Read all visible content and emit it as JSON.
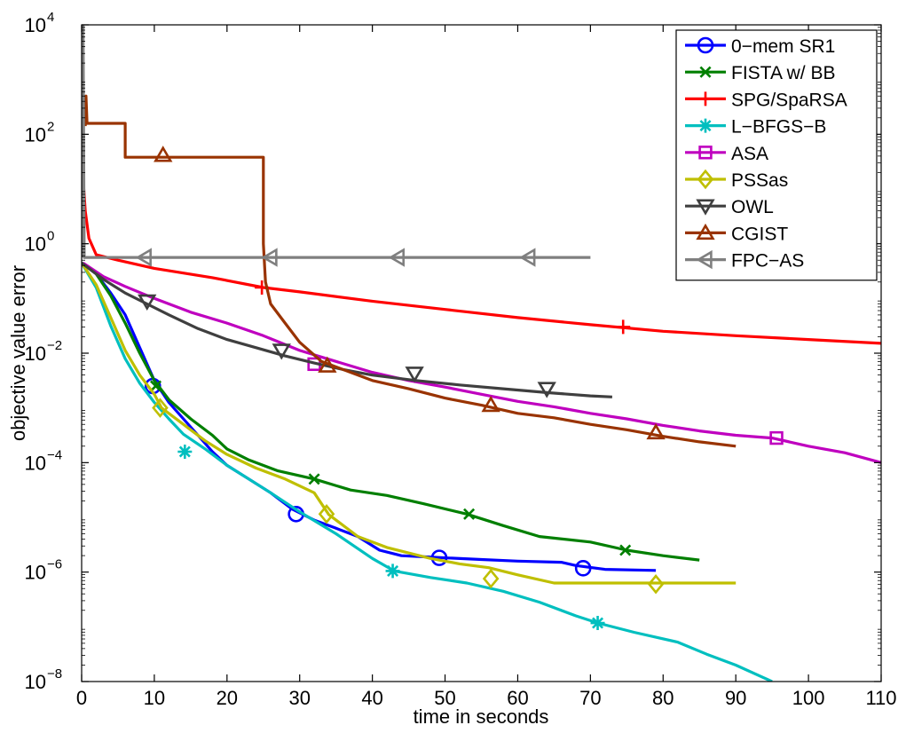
{
  "chart_data": {
    "type": "line",
    "title": "",
    "xlabel": "time in seconds",
    "ylabel": "objective value error",
    "xlim": [
      0,
      110
    ],
    "ylim_log10": [
      -8,
      4
    ],
    "yscale": "log",
    "grid": false,
    "legend_position": "top-right",
    "x_ticks": [
      "0",
      "10",
      "20",
      "30",
      "40",
      "50",
      "60",
      "70",
      "80",
      "90",
      "100",
      "110"
    ],
    "y_ticks": [
      {
        "base": "10",
        "exp": "−8",
        "value": -8
      },
      {
        "base": "10",
        "exp": "−6",
        "value": -6
      },
      {
        "base": "10",
        "exp": "−4",
        "value": -4
      },
      {
        "base": "10",
        "exp": "−2",
        "value": -2
      },
      {
        "base": "10",
        "exp": "0",
        "value": 0
      },
      {
        "base": "10",
        "exp": "2",
        "value": 2
      },
      {
        "base": "10",
        "exp": "4",
        "value": 4
      }
    ],
    "series": [
      {
        "name": "0−mem SR1",
        "color": "#0000ff",
        "marker": "circle",
        "points": [
          [
            0,
            -0.35
          ],
          [
            2,
            -0.55
          ],
          [
            4,
            -0.9
          ],
          [
            6,
            -1.3
          ],
          [
            8,
            -1.9
          ],
          [
            10,
            -2.5
          ],
          [
            12,
            -2.9
          ],
          [
            14,
            -3.2
          ],
          [
            16,
            -3.5
          ],
          [
            18,
            -3.8
          ],
          [
            20,
            -4.05
          ],
          [
            23,
            -4.3
          ],
          [
            26,
            -4.55
          ],
          [
            29,
            -4.85
          ],
          [
            32,
            -5.05
          ],
          [
            35,
            -5.2
          ],
          [
            38,
            -5.35
          ],
          [
            41,
            -5.6
          ],
          [
            44,
            -5.7
          ],
          [
            47,
            -5.72
          ],
          [
            50,
            -5.74
          ],
          [
            55,
            -5.77
          ],
          [
            60,
            -5.8
          ],
          [
            66,
            -5.82
          ],
          [
            68,
            -5.88
          ],
          [
            72,
            -5.95
          ],
          [
            79,
            -5.97
          ]
        ],
        "markers": [
          [
            9.8,
            -2.6
          ],
          [
            29.5,
            -4.94
          ],
          [
            49.2,
            -5.74
          ],
          [
            69,
            -5.93
          ]
        ]
      },
      {
        "name": "FISTA w/ BB",
        "color": "#007f00",
        "marker": "x",
        "points": [
          [
            0,
            -0.35
          ],
          [
            2,
            -0.55
          ],
          [
            4,
            -0.95
          ],
          [
            6,
            -1.45
          ],
          [
            8,
            -2.0
          ],
          [
            10,
            -2.5
          ],
          [
            12,
            -2.85
          ],
          [
            15,
            -3.2
          ],
          [
            18,
            -3.5
          ],
          [
            20,
            -3.75
          ],
          [
            23,
            -3.95
          ],
          [
            27,
            -4.15
          ],
          [
            32,
            -4.3
          ],
          [
            37,
            -4.5
          ],
          [
            42,
            -4.6
          ],
          [
            47,
            -4.75
          ],
          [
            53,
            -4.94
          ],
          [
            58,
            -5.15
          ],
          [
            63,
            -5.35
          ],
          [
            70,
            -5.45
          ],
          [
            75,
            -5.6
          ],
          [
            80,
            -5.7
          ],
          [
            85,
            -5.78
          ]
        ],
        "markers": [
          [
            10.2,
            -2.6
          ],
          [
            32,
            -4.3
          ],
          [
            53.3,
            -4.94
          ],
          [
            74.8,
            -5.6
          ]
        ]
      },
      {
        "name": "SPG/SpaRSA",
        "color": "#ff0000",
        "marker": "plus",
        "points": [
          [
            0.2,
            1.2
          ],
          [
            0.5,
            0.6
          ],
          [
            1,
            0.1
          ],
          [
            2,
            -0.2
          ],
          [
            5,
            -0.3
          ],
          [
            10,
            -0.45
          ],
          [
            18,
            -0.62
          ],
          [
            25,
            -0.8
          ],
          [
            30,
            -0.88
          ],
          [
            40,
            -1.05
          ],
          [
            50,
            -1.2
          ],
          [
            60,
            -1.35
          ],
          [
            70,
            -1.48
          ],
          [
            80,
            -1.6
          ],
          [
            90,
            -1.68
          ],
          [
            100,
            -1.75
          ],
          [
            110,
            -1.82
          ]
        ],
        "markers": [
          [
            24.8,
            -0.8
          ],
          [
            74.5,
            -1.52
          ]
        ]
      },
      {
        "name": "L−BFGS−B",
        "color": "#00bfbf",
        "marker": "asterisk",
        "points": [
          [
            0,
            -0.35
          ],
          [
            2,
            -0.8
          ],
          [
            4,
            -1.5
          ],
          [
            6,
            -2.1
          ],
          [
            8,
            -2.55
          ],
          [
            10,
            -2.9
          ],
          [
            12,
            -3.2
          ],
          [
            14,
            -3.48
          ],
          [
            17,
            -3.75
          ],
          [
            20,
            -4.05
          ],
          [
            23,
            -4.3
          ],
          [
            26,
            -4.55
          ],
          [
            30,
            -4.9
          ],
          [
            35,
            -5.3
          ],
          [
            40,
            -5.75
          ],
          [
            43,
            -5.98
          ],
          [
            48,
            -6.1
          ],
          [
            53,
            -6.2
          ],
          [
            58,
            -6.35
          ],
          [
            63,
            -6.55
          ],
          [
            68,
            -6.8
          ],
          [
            71,
            -6.93
          ],
          [
            76,
            -7.1
          ],
          [
            82,
            -7.28
          ],
          [
            86,
            -7.5
          ],
          [
            90,
            -7.7
          ],
          [
            95,
            -8.0
          ]
        ],
        "markers": [
          [
            14.2,
            -3.8
          ],
          [
            42.8,
            -5.98
          ],
          [
            71,
            -6.93
          ]
        ]
      },
      {
        "name": "ASA",
        "color": "#bf00bf",
        "marker": "square",
        "points": [
          [
            0.2,
            -0.35
          ],
          [
            3,
            -0.6
          ],
          [
            6,
            -0.78
          ],
          [
            10,
            -1.0
          ],
          [
            15,
            -1.25
          ],
          [
            20,
            -1.45
          ],
          [
            25,
            -1.68
          ],
          [
            30,
            -1.95
          ],
          [
            35,
            -2.15
          ],
          [
            40,
            -2.35
          ],
          [
            45,
            -2.5
          ],
          [
            50,
            -2.62
          ],
          [
            55,
            -2.75
          ],
          [
            60,
            -2.88
          ],
          [
            65,
            -2.98
          ],
          [
            70,
            -3.1
          ],
          [
            75,
            -3.2
          ],
          [
            80,
            -3.32
          ],
          [
            85,
            -3.42
          ],
          [
            90,
            -3.5
          ],
          [
            95,
            -3.55
          ],
          [
            100,
            -3.7
          ],
          [
            105,
            -3.82
          ],
          [
            110,
            -4.0
          ]
        ],
        "markers": [
          [
            32,
            -2.2
          ],
          [
            95.6,
            -3.55
          ]
        ]
      },
      {
        "name": "PSSas",
        "color": "#bfbf00",
        "marker": "diamond",
        "points": [
          [
            0,
            -0.35
          ],
          [
            2,
            -0.75
          ],
          [
            4,
            -1.35
          ],
          [
            6,
            -1.95
          ],
          [
            8,
            -2.4
          ],
          [
            10,
            -2.75
          ],
          [
            11,
            -3.0
          ],
          [
            14,
            -3.3
          ],
          [
            17,
            -3.6
          ],
          [
            20,
            -3.85
          ],
          [
            24,
            -4.1
          ],
          [
            28,
            -4.3
          ],
          [
            32,
            -4.55
          ],
          [
            34,
            -4.95
          ],
          [
            38,
            -5.35
          ],
          [
            42,
            -5.55
          ],
          [
            48,
            -5.75
          ],
          [
            52,
            -5.85
          ],
          [
            56,
            -5.92
          ],
          [
            60,
            -6.05
          ],
          [
            65,
            -6.2
          ],
          [
            70,
            -6.2
          ],
          [
            75,
            -6.2
          ],
          [
            79,
            -6.2
          ],
          [
            90,
            -6.2
          ]
        ],
        "markers": [
          [
            10.8,
            -3.0
          ],
          [
            33.7,
            -4.94
          ],
          [
            56.3,
            -6.12
          ],
          [
            79,
            -6.22
          ]
        ]
      },
      {
        "name": "OWL",
        "color": "#3f3f3f",
        "marker": "triangle-down",
        "points": [
          [
            0,
            -0.35
          ],
          [
            3,
            -0.65
          ],
          [
            6,
            -0.9
          ],
          [
            9,
            -1.1
          ],
          [
            12,
            -1.3
          ],
          [
            16,
            -1.55
          ],
          [
            20,
            -1.75
          ],
          [
            24,
            -1.9
          ],
          [
            28,
            -2.05
          ],
          [
            32,
            -2.18
          ],
          [
            36,
            -2.3
          ],
          [
            40,
            -2.4
          ],
          [
            46,
            -2.5
          ],
          [
            52,
            -2.58
          ],
          [
            58,
            -2.65
          ],
          [
            64,
            -2.72
          ],
          [
            70,
            -2.78
          ],
          [
            73,
            -2.8
          ]
        ],
        "markers": [
          [
            9,
            -1.05
          ],
          [
            27.5,
            -1.95
          ],
          [
            45.8,
            -2.37
          ],
          [
            64,
            -2.65
          ]
        ]
      },
      {
        "name": "CGIST",
        "color": "#993300",
        "marker": "triangle-up",
        "points": [
          [
            0.5,
            2.15
          ],
          [
            0.6,
            2.7
          ],
          [
            0.75,
            2.2
          ],
          [
            1,
            2.2
          ],
          [
            6,
            2.2
          ],
          [
            6,
            1.58
          ],
          [
            11,
            1.58
          ],
          [
            25,
            1.58
          ],
          [
            25,
            0
          ],
          [
            25.3,
            -0.7
          ],
          [
            26,
            -1.1
          ],
          [
            28,
            -1.45
          ],
          [
            30,
            -1.8
          ],
          [
            33,
            -2.15
          ],
          [
            36,
            -2.3
          ],
          [
            40,
            -2.5
          ],
          [
            45,
            -2.65
          ],
          [
            50,
            -2.82
          ],
          [
            55,
            -2.95
          ],
          [
            60,
            -3.1
          ],
          [
            65,
            -3.18
          ],
          [
            70,
            -3.3
          ],
          [
            75,
            -3.4
          ],
          [
            80,
            -3.52
          ],
          [
            85,
            -3.62
          ],
          [
            90,
            -3.7
          ]
        ],
        "markers": [
          [
            11.2,
            1.62
          ],
          [
            33.8,
            -2.23
          ],
          [
            56.3,
            -2.95
          ],
          [
            79,
            -3.45
          ]
        ]
      },
      {
        "name": "FPC−AS",
        "color": "#7f7f7f",
        "marker": "triangle-left",
        "points": [
          [
            0,
            -0.25
          ],
          [
            0.2,
            4.1
          ],
          [
            0.35,
            -0.25
          ],
          [
            20,
            -0.25
          ],
          [
            40,
            -0.25
          ],
          [
            60,
            -0.25
          ],
          [
            70,
            -0.25
          ]
        ],
        "markers": [
          [
            8.7,
            -0.25
          ],
          [
            26,
            -0.25
          ],
          [
            43.5,
            -0.25
          ],
          [
            61.5,
            -0.25
          ]
        ]
      }
    ]
  }
}
